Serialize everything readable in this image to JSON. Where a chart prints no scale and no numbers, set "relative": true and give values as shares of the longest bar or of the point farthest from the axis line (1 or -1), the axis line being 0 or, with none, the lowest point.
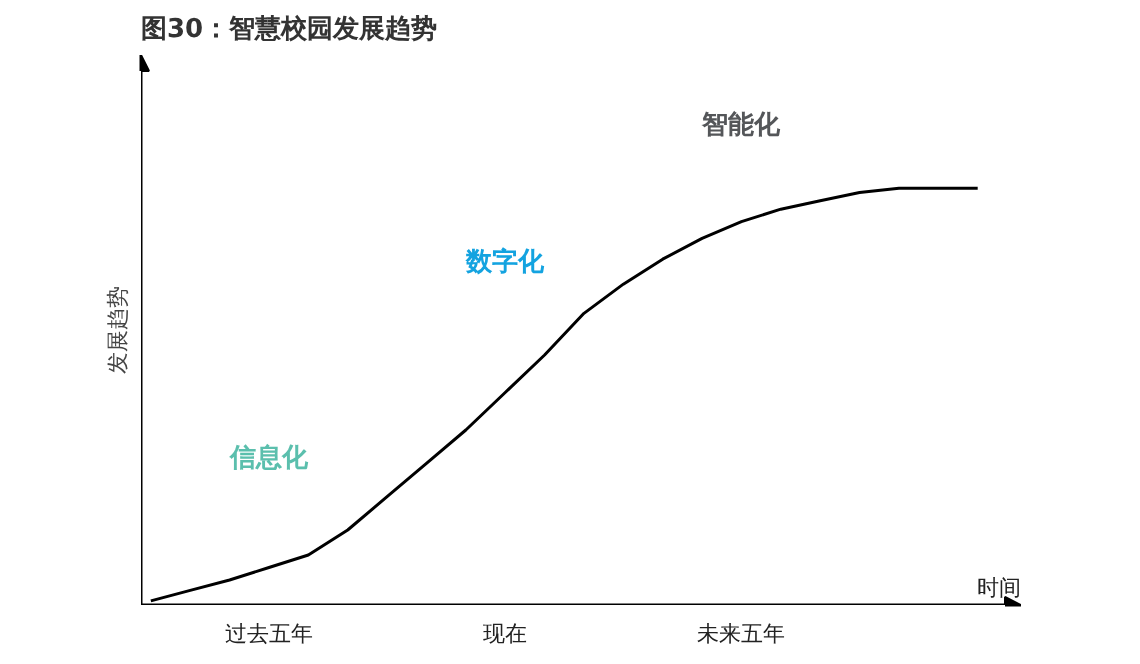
{
  "chart_data": {
    "type": "line",
    "title": "图30：智慧校园发展趋势",
    "ylabel": "发展趋势",
    "xlabel": "时间",
    "relative": true,
    "categories": [
      null,
      null,
      null,
      "过去五年",
      null,
      null,
      null,
      null,
      null,
      "现在",
      null,
      null,
      null,
      null,
      null,
      "未来五年",
      null,
      null,
      null,
      null,
      null,
      null
    ],
    "series": [
      {
        "color": "#000000",
        "values": [
          0.01,
          0.035,
          0.06,
          0.09,
          0.12,
          0.18,
          0.26,
          0.34,
          0.42,
          0.51,
          0.6,
          0.7,
          0.77,
          0.83,
          0.88,
          0.92,
          0.95,
          0.97,
          0.99,
          1.0,
          1.0,
          1.0
        ]
      }
    ],
    "annotations": [
      "信息化",
      "数字化",
      "智能化"
    ],
    "grid": false,
    "marker": "none",
    "line_style": "solid"
  }
}
